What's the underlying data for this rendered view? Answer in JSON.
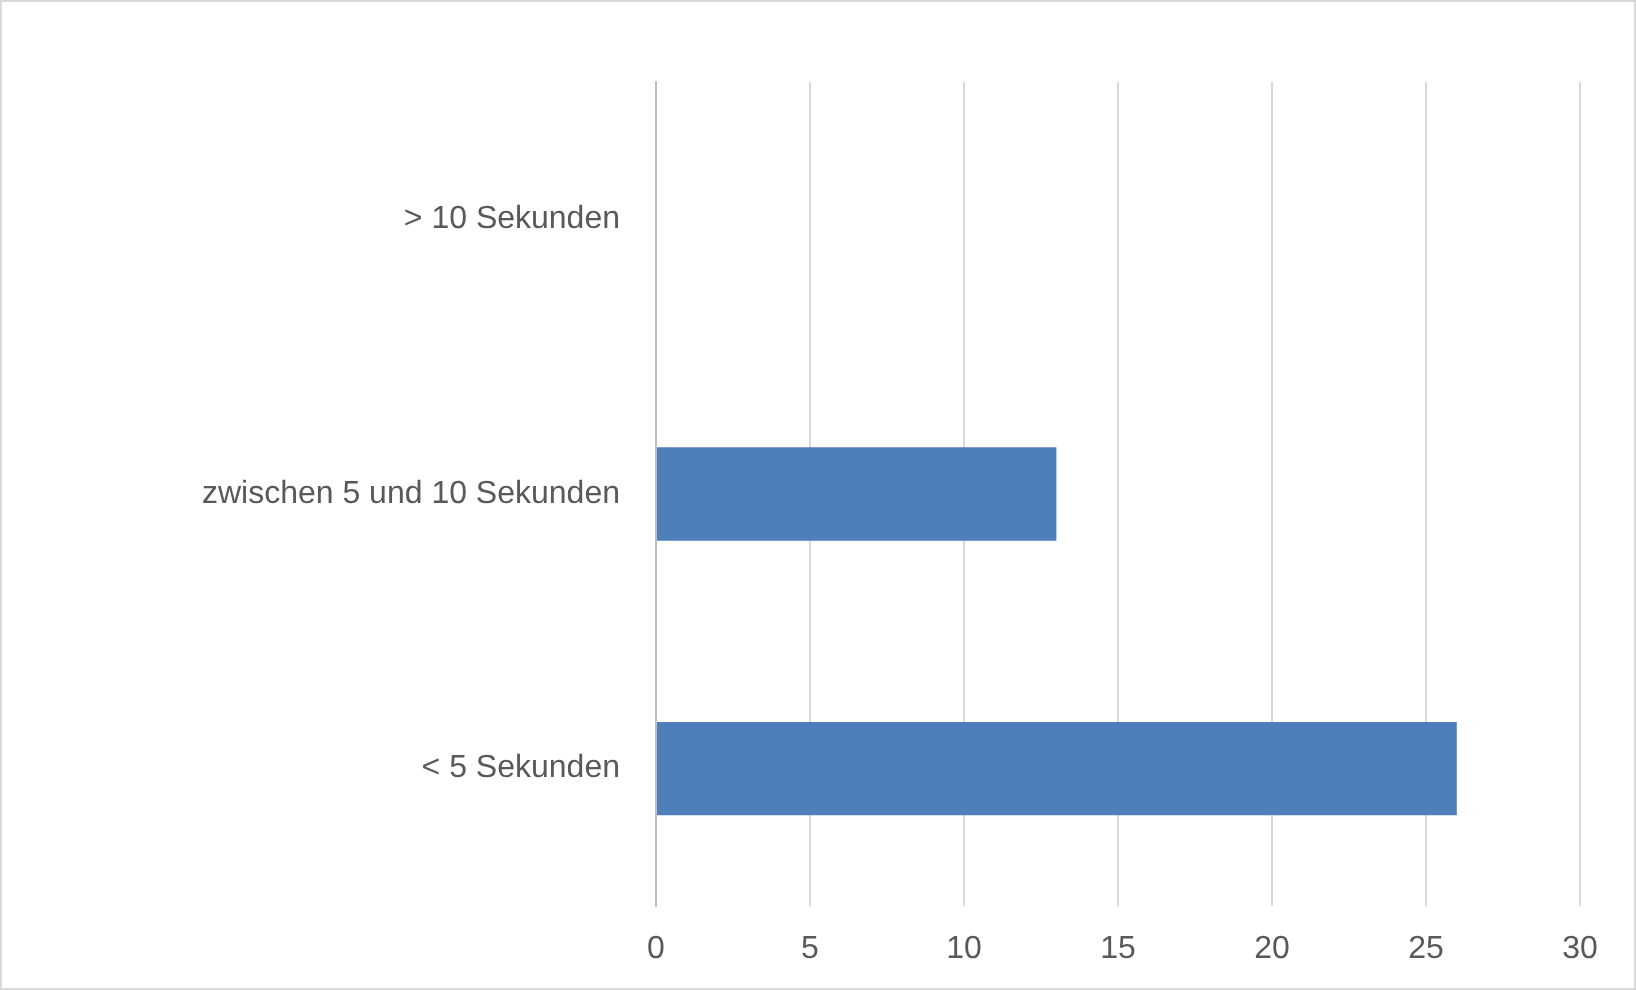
{
  "chart_data": {
    "type": "bar",
    "orientation": "horizontal",
    "categories": [
      "> 10 Sekunden",
      "zwischen 5 und 10 Sekunden",
      "< 5 Sekunden"
    ],
    "values": [
      0,
      13,
      26
    ],
    "color": "#4f7fbb",
    "xlim": [
      0,
      30
    ],
    "xticks": [
      0,
      5,
      10,
      15,
      20,
      25,
      30
    ],
    "grid": "x",
    "legend": false
  }
}
